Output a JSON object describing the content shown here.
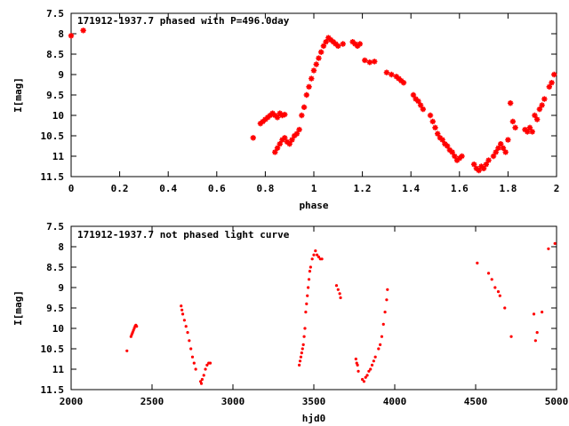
{
  "chart_data": [
    {
      "type": "scatter",
      "title": "171912-1937.7 phased with P=496.0day",
      "xlabel": "phase",
      "ylabel": "I[mag]",
      "xlim": [
        0,
        2
      ],
      "ylim": [
        11.5,
        7.5
      ],
      "y_inverted": true,
      "grid": false,
      "x_ticks": [
        "0",
        "0.2",
        "0.4",
        "0.6",
        "0.8",
        "1",
        "1.2",
        "1.4",
        "1.6",
        "1.8",
        "2"
      ],
      "x_tick_values": [
        0,
        0.2,
        0.4,
        0.6,
        0.8,
        1,
        1.2,
        1.4,
        1.6,
        1.8,
        2
      ],
      "y_ticks": [
        "7.5",
        "8",
        "8.5",
        "9",
        "9.5",
        "10",
        "10.5",
        "11",
        "11.5"
      ],
      "y_tick_values": [
        7.5,
        8,
        8.5,
        9,
        9.5,
        10,
        10.5,
        11,
        11.5
      ],
      "marker_color": "#ff0000",
      "marker": "star",
      "points": [
        [
          0.0,
          8.05
        ],
        [
          0.05,
          7.92
        ],
        [
          0.75,
          10.55
        ],
        [
          0.78,
          10.2
        ],
        [
          0.79,
          10.15
        ],
        [
          0.8,
          10.1
        ],
        [
          0.81,
          10.05
        ],
        [
          0.82,
          10.0
        ],
        [
          0.83,
          9.95
        ],
        [
          0.84,
          10.0
        ],
        [
          0.85,
          10.05
        ],
        [
          0.86,
          9.95
        ],
        [
          0.87,
          10.0
        ],
        [
          0.88,
          9.98
        ],
        [
          0.84,
          10.9
        ],
        [
          0.85,
          10.8
        ],
        [
          0.86,
          10.7
        ],
        [
          0.87,
          10.6
        ],
        [
          0.88,
          10.55
        ],
        [
          0.89,
          10.65
        ],
        [
          0.9,
          10.7
        ],
        [
          0.91,
          10.6
        ],
        [
          0.92,
          10.5
        ],
        [
          0.93,
          10.45
        ],
        [
          0.94,
          10.35
        ],
        [
          0.95,
          10.0
        ],
        [
          0.96,
          9.8
        ],
        [
          0.97,
          9.5
        ],
        [
          0.98,
          9.3
        ],
        [
          0.99,
          9.1
        ],
        [
          1.0,
          8.9
        ],
        [
          1.01,
          8.75
        ],
        [
          1.02,
          8.6
        ],
        [
          1.03,
          8.45
        ],
        [
          1.04,
          8.3
        ],
        [
          1.05,
          8.2
        ],
        [
          1.06,
          8.1
        ],
        [
          1.07,
          8.15
        ],
        [
          1.08,
          8.2
        ],
        [
          1.09,
          8.25
        ],
        [
          1.1,
          8.3
        ],
        [
          1.12,
          8.25
        ],
        [
          1.16,
          8.2
        ],
        [
          1.17,
          8.25
        ],
        [
          1.18,
          8.3
        ],
        [
          1.19,
          8.25
        ],
        [
          1.21,
          8.65
        ],
        [
          1.23,
          8.7
        ],
        [
          1.25,
          8.68
        ],
        [
          1.3,
          8.95
        ],
        [
          1.32,
          9.0
        ],
        [
          1.34,
          9.05
        ],
        [
          1.35,
          9.1
        ],
        [
          1.36,
          9.15
        ],
        [
          1.37,
          9.2
        ],
        [
          1.41,
          9.5
        ],
        [
          1.42,
          9.6
        ],
        [
          1.43,
          9.65
        ],
        [
          1.44,
          9.75
        ],
        [
          1.45,
          9.85
        ],
        [
          1.48,
          10.0
        ],
        [
          1.49,
          10.15
        ],
        [
          1.5,
          10.3
        ],
        [
          1.51,
          10.45
        ],
        [
          1.52,
          10.55
        ],
        [
          1.53,
          10.6
        ],
        [
          1.54,
          10.7
        ],
        [
          1.55,
          10.75
        ],
        [
          1.56,
          10.85
        ],
        [
          1.57,
          10.9
        ],
        [
          1.58,
          11.0
        ],
        [
          1.59,
          11.1
        ],
        [
          1.6,
          11.05
        ],
        [
          1.61,
          11.0
        ],
        [
          1.66,
          11.2
        ],
        [
          1.67,
          11.3
        ],
        [
          1.68,
          11.35
        ],
        [
          1.69,
          11.25
        ],
        [
          1.7,
          11.3
        ],
        [
          1.71,
          11.2
        ],
        [
          1.72,
          11.1
        ],
        [
          1.74,
          11.0
        ],
        [
          1.75,
          10.9
        ],
        [
          1.76,
          10.8
        ],
        [
          1.77,
          10.7
        ],
        [
          1.78,
          10.8
        ],
        [
          1.79,
          10.9
        ],
        [
          1.8,
          10.6
        ],
        [
          1.81,
          9.7
        ],
        [
          1.82,
          10.15
        ],
        [
          1.83,
          10.3
        ],
        [
          1.87,
          10.35
        ],
        [
          1.88,
          10.4
        ],
        [
          1.89,
          10.3
        ],
        [
          1.9,
          10.4
        ],
        [
          1.91,
          10.0
        ],
        [
          1.92,
          10.1
        ],
        [
          1.93,
          9.85
        ],
        [
          1.94,
          9.75
        ],
        [
          1.95,
          9.6
        ],
        [
          1.97,
          9.3
        ],
        [
          1.98,
          9.2
        ],
        [
          1.99,
          9.0
        ]
      ]
    },
    {
      "type": "scatter",
      "title": "171912-1937.7 not phased light curve",
      "xlabel": "hjd0",
      "ylabel": "I[mag]",
      "xlim": [
        2000,
        5000
      ],
      "ylim": [
        11.5,
        7.5
      ],
      "y_inverted": true,
      "grid": false,
      "x_ticks": [
        "2000",
        "2500",
        "3000",
        "3500",
        "4000",
        "4500",
        "5000"
      ],
      "x_tick_values": [
        2000,
        2500,
        3000,
        3500,
        4000,
        4500,
        5000
      ],
      "y_ticks": [
        "7.5",
        "8",
        "8.5",
        "9",
        "9.5",
        "10",
        "10.5",
        "11",
        "11.5"
      ],
      "y_tick_values": [
        7.5,
        8,
        8.5,
        9,
        9.5,
        10,
        10.5,
        11,
        11.5
      ],
      "marker_color": "#ff0000",
      "marker": "dot",
      "points": [
        [
          2345,
          10.55
        ],
        [
          2370,
          10.2
        ],
        [
          2375,
          10.15
        ],
        [
          2380,
          10.1
        ],
        [
          2385,
          10.05
        ],
        [
          2390,
          10.0
        ],
        [
          2395,
          9.95
        ],
        [
          2400,
          9.92
        ],
        [
          2405,
          9.95
        ],
        [
          2680,
          9.45
        ],
        [
          2685,
          9.55
        ],
        [
          2690,
          9.65
        ],
        [
          2700,
          9.8
        ],
        [
          2710,
          9.95
        ],
        [
          2720,
          10.1
        ],
        [
          2730,
          10.3
        ],
        [
          2740,
          10.5
        ],
        [
          2750,
          10.7
        ],
        [
          2760,
          10.85
        ],
        [
          2770,
          11.0
        ],
        [
          2800,
          11.3
        ],
        [
          2805,
          11.35
        ],
        [
          2810,
          11.25
        ],
        [
          2820,
          11.15
        ],
        [
          2830,
          11.0
        ],
        [
          2840,
          10.9
        ],
        [
          2850,
          10.85
        ],
        [
          2860,
          10.85
        ],
        [
          3410,
          10.9
        ],
        [
          3415,
          10.8
        ],
        [
          3420,
          10.7
        ],
        [
          3425,
          10.6
        ],
        [
          3430,
          10.5
        ],
        [
          3435,
          10.4
        ],
        [
          3440,
          10.2
        ],
        [
          3445,
          10.0
        ],
        [
          3450,
          9.6
        ],
        [
          3455,
          9.4
        ],
        [
          3460,
          9.2
        ],
        [
          3465,
          9.0
        ],
        [
          3470,
          8.8
        ],
        [
          3475,
          8.6
        ],
        [
          3480,
          8.5
        ],
        [
          3490,
          8.3
        ],
        [
          3500,
          8.2
        ],
        [
          3510,
          8.1
        ],
        [
          3520,
          8.2
        ],
        [
          3530,
          8.25
        ],
        [
          3540,
          8.3
        ],
        [
          3550,
          8.3
        ],
        [
          3640,
          8.95
        ],
        [
          3650,
          9.05
        ],
        [
          3660,
          9.15
        ],
        [
          3665,
          9.25
        ],
        [
          3760,
          10.75
        ],
        [
          3765,
          10.85
        ],
        [
          3770,
          10.9
        ],
        [
          3775,
          11.05
        ],
        [
          3800,
          11.25
        ],
        [
          3810,
          11.3
        ],
        [
          3820,
          11.2
        ],
        [
          3830,
          11.15
        ],
        [
          3840,
          11.05
        ],
        [
          3850,
          11.0
        ],
        [
          3860,
          10.9
        ],
        [
          3870,
          10.8
        ],
        [
          3880,
          10.7
        ],
        [
          3900,
          10.5
        ],
        [
          3910,
          10.4
        ],
        [
          3920,
          10.2
        ],
        [
          3930,
          9.9
        ],
        [
          3940,
          9.6
        ],
        [
          3950,
          9.3
        ],
        [
          3955,
          9.05
        ],
        [
          4510,
          8.4
        ],
        [
          4580,
          8.65
        ],
        [
          4600,
          8.8
        ],
        [
          4620,
          9.0
        ],
        [
          4640,
          9.1
        ],
        [
          4650,
          9.2
        ],
        [
          4680,
          9.5
        ],
        [
          4720,
          10.2
        ],
        [
          4860,
          9.65
        ],
        [
          4870,
          10.3
        ],
        [
          4880,
          10.1
        ],
        [
          4910,
          9.6
        ],
        [
          4950,
          8.05
        ],
        [
          4990,
          7.92
        ]
      ]
    }
  ]
}
